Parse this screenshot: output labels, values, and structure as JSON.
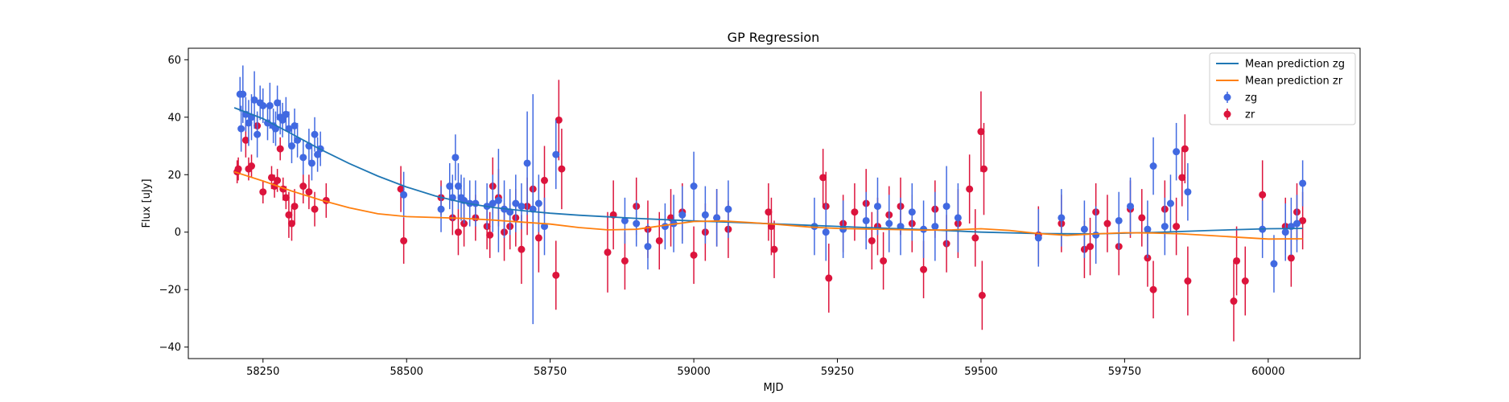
{
  "chart_data": {
    "type": "scatter",
    "title": "GP Regression",
    "xlabel": "MJD",
    "ylabel": "Flux [uJy]",
    "xlim": [
      58120,
      60160
    ],
    "ylim": [
      -44,
      64
    ],
    "x_ticks": [
      58250,
      58500,
      58750,
      59000,
      59250,
      59500,
      59750,
      60000
    ],
    "y_ticks": [
      -40,
      -20,
      0,
      20,
      40,
      60
    ],
    "grid": false,
    "legend_position": "top-right",
    "legend": [
      "Mean prediction zg",
      "Mean prediction zr",
      "zg",
      "zr"
    ],
    "colors": {
      "zg_line": "#1f77b4",
      "zr_line": "#ff7f0e",
      "zg_points": "#4169e1",
      "zr_points": "#dc143c"
    },
    "lines": [
      {
        "name": "Mean prediction zg",
        "x": [
          58200,
          58250,
          58300,
          58350,
          58400,
          58450,
          58500,
          58550,
          58600,
          58650,
          58700,
          58750,
          58800,
          58900,
          59000,
          59100,
          59200,
          59300,
          59400,
          59500,
          59600,
          59700,
          59800,
          59900,
          60000,
          60060
        ],
        "y": [
          43.3,
          39.5,
          34.2,
          28.8,
          23.9,
          19.5,
          15.7,
          12.6,
          10.2,
          8.6,
          7.5,
          6.6,
          5.9,
          4.8,
          3.9,
          3.2,
          2.4,
          1.6,
          0.9,
          0.0,
          -0.5,
          -0.6,
          -0.1,
          0.6,
          1.2,
          1.3
        ]
      },
      {
        "name": "Mean prediction zr",
        "x": [
          58200,
          58250,
          58300,
          58350,
          58400,
          58450,
          58500,
          58550,
          58600,
          58650,
          58700,
          58750,
          58800,
          58850,
          58900,
          58950,
          59000,
          59050,
          59100,
          59150,
          59200,
          59250,
          59300,
          59350,
          59400,
          59450,
          59500,
          59550,
          59600,
          59650,
          59700,
          59750,
          59800,
          59850,
          59900,
          59950,
          60000,
          60060
        ],
        "y": [
          21.0,
          17.8,
          14.3,
          11.2,
          8.5,
          6.4,
          5.4,
          5.1,
          4.8,
          4.2,
          3.5,
          2.8,
          1.6,
          0.8,
          1.0,
          2.4,
          3.7,
          3.9,
          3.3,
          2.6,
          1.8,
          1.3,
          1.1,
          0.9,
          0.7,
          0.8,
          1.2,
          0.6,
          -0.5,
          -1.1,
          -0.6,
          -0.2,
          -0.3,
          -0.6,
          -1.2,
          -1.8,
          -2.4,
          -2.3
        ]
      }
    ],
    "series": [
      {
        "name": "zg",
        "x": [
          58210,
          58212,
          58215,
          58220,
          58225,
          58230,
          58235,
          58240,
          58245,
          58250,
          58258,
          58262,
          58268,
          58272,
          58275,
          58280,
          58284,
          58290,
          58295,
          58300,
          58305,
          58310,
          58320,
          58330,
          58335,
          58340,
          58345,
          58350,
          58495,
          58560,
          58575,
          58580,
          58585,
          58590,
          58595,
          58600,
          58610,
          58620,
          58640,
          58650,
          58660,
          58670,
          58680,
          58690,
          58700,
          58710,
          58720,
          58730,
          58740,
          58760,
          58880,
          58900,
          58920,
          58950,
          58965,
          58980,
          59000,
          59020,
          59040,
          59060,
          59210,
          59230,
          59260,
          59300,
          59320,
          59340,
          59360,
          59380,
          59400,
          59420,
          59440,
          59460,
          59600,
          59640,
          59680,
          59700,
          59740,
          59760,
          59790,
          59800,
          59820,
          59830,
          59840,
          59860,
          59990,
          60010,
          60030,
          60040,
          60050,
          60060
        ],
        "y": [
          48,
          36,
          48,
          41,
          38,
          40,
          46,
          34,
          45,
          44,
          38,
          44,
          37,
          36,
          45,
          40,
          39,
          41,
          36,
          30,
          37,
          32,
          26,
          30,
          24,
          34,
          27,
          29,
          13,
          8,
          16,
          12,
          26,
          16,
          12,
          11,
          10,
          10,
          9,
          10,
          11,
          8,
          7,
          10,
          9,
          24,
          8,
          10,
          2,
          27,
          4,
          3,
          -5,
          2,
          3,
          6,
          16,
          6,
          5,
          8,
          2,
          0,
          1,
          4,
          9,
          3,
          2,
          7,
          1,
          2,
          9,
          5,
          -2,
          5,
          1,
          -1,
          4,
          9,
          1,
          23,
          2,
          10,
          28,
          14,
          1,
          -11,
          0,
          2,
          3,
          17
        ],
        "err": [
          6,
          8,
          10,
          6,
          8,
          8,
          10,
          8,
          6,
          6,
          6,
          8,
          6,
          6,
          6,
          6,
          6,
          6,
          6,
          6,
          6,
          6,
          6,
          6,
          6,
          6,
          6,
          6,
          8,
          8,
          8,
          8,
          8,
          8,
          8,
          8,
          8,
          8,
          8,
          10,
          18,
          10,
          8,
          10,
          8,
          18,
          40,
          10,
          10,
          12,
          8,
          8,
          8,
          8,
          10,
          10,
          12,
          10,
          10,
          10,
          10,
          10,
          10,
          10,
          10,
          10,
          10,
          10,
          10,
          12,
          14,
          12,
          10,
          10,
          10,
          10,
          10,
          10,
          10,
          10,
          10,
          10,
          10,
          10,
          10,
          10,
          10,
          10,
          10,
          8
        ]
      },
      {
        "name": "zr",
        "x": [
          58205,
          58207,
          58220,
          58225,
          58230,
          58240,
          58250,
          58265,
          58270,
          58275,
          58280,
          58285,
          58290,
          58295,
          58300,
          58305,
          58320,
          58330,
          58340,
          58360,
          58490,
          58495,
          58560,
          58580,
          58590,
          58600,
          58620,
          58640,
          58645,
          58650,
          58660,
          58670,
          58680,
          58690,
          58700,
          58710,
          58720,
          58730,
          58740,
          58760,
          58765,
          58770,
          58850,
          58860,
          58880,
          58900,
          58920,
          58940,
          58960,
          58980,
          59000,
          59020,
          59040,
          59060,
          59130,
          59135,
          59140,
          59225,
          59230,
          59235,
          59260,
          59280,
          59300,
          59310,
          59320,
          59330,
          59340,
          59360,
          59380,
          59400,
          59420,
          59440,
          59460,
          59480,
          59490,
          59500,
          59502,
          59505,
          59600,
          59640,
          59680,
          59690,
          59700,
          59720,
          59740,
          59760,
          59780,
          59790,
          59800,
          59820,
          59840,
          59850,
          59855,
          59860,
          59940,
          59945,
          59960,
          59990,
          60030,
          60040,
          60050,
          60060
        ],
        "y": [
          21,
          22,
          32,
          22,
          23,
          37,
          14,
          19,
          16,
          18,
          29,
          15,
          12,
          6,
          3,
          9,
          16,
          14,
          8,
          11,
          15,
          -3,
          12,
          5,
          0,
          3,
          5,
          2,
          -1,
          16,
          12,
          0,
          2,
          5,
          -6,
          9,
          15,
          -2,
          18,
          -15,
          39,
          22,
          -7,
          6,
          -10,
          9,
          1,
          -3,
          5,
          7,
          -8,
          0,
          5,
          1,
          7,
          2,
          -6,
          19,
          9,
          -16,
          3,
          7,
          10,
          -3,
          2,
          -10,
          6,
          9,
          3,
          -13,
          8,
          -4,
          3,
          15,
          -2,
          35,
          -22,
          22,
          -1,
          3,
          -6,
          -5,
          7,
          3,
          -5,
          8,
          5,
          -9,
          -20,
          8,
          2,
          19,
          29,
          -17,
          -24,
          -10,
          -17,
          13,
          2,
          -9,
          7,
          4
        ],
        "err": [
          4,
          4,
          6,
          4,
          4,
          4,
          4,
          4,
          4,
          4,
          4,
          4,
          4,
          8,
          6,
          6,
          6,
          6,
          6,
          6,
          8,
          8,
          6,
          6,
          8,
          8,
          8,
          8,
          8,
          10,
          10,
          10,
          8,
          10,
          12,
          10,
          12,
          12,
          12,
          12,
          14,
          14,
          14,
          12,
          10,
          10,
          10,
          10,
          10,
          10,
          10,
          10,
          10,
          10,
          10,
          10,
          10,
          10,
          12,
          12,
          10,
          10,
          12,
          10,
          10,
          10,
          10,
          10,
          10,
          10,
          10,
          10,
          12,
          12,
          10,
          14,
          12,
          16,
          10,
          10,
          10,
          10,
          10,
          10,
          10,
          10,
          10,
          10,
          10,
          10,
          10,
          10,
          12,
          12,
          14,
          12,
          12,
          12,
          10,
          10,
          10,
          10
        ]
      }
    ]
  }
}
